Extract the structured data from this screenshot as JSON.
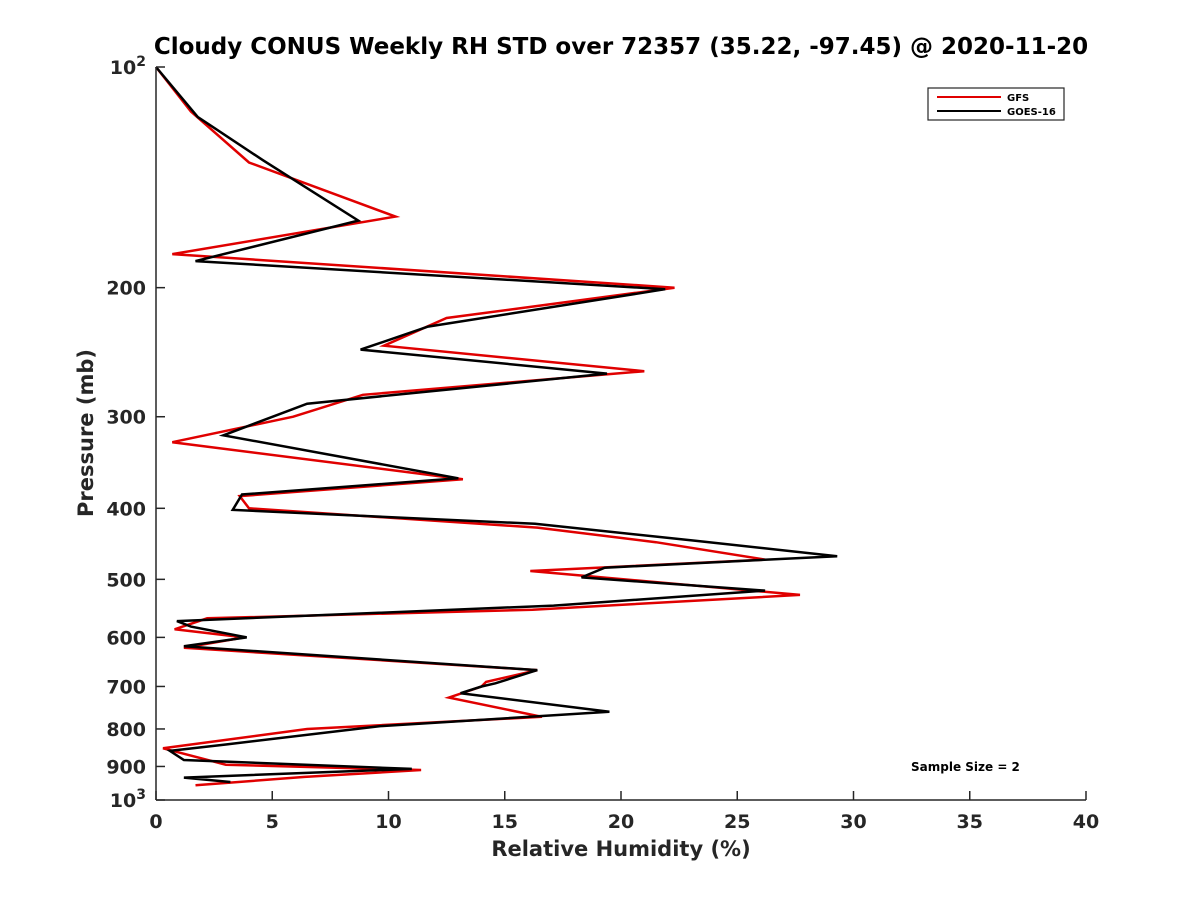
{
  "chart_data": {
    "type": "line",
    "title": "Cloudy CONUS Weekly RH STD over 72357 (35.22, -97.45) @ 2020-11-20",
    "xlabel": "Relative Humidity (%)",
    "ylabel": "Pressure (mb)",
    "xlim": [
      0,
      40
    ],
    "ylim": [
      100,
      1000
    ],
    "y_scale": "log",
    "y_reversed": true,
    "grid": false,
    "legend_position": "top-right",
    "annotation": "Sample Size = 2",
    "x_ticks": [
      "0",
      "5",
      "10",
      "15",
      "20",
      "25",
      "30",
      "35",
      "40"
    ],
    "y_ticks": [
      {
        "value": 100,
        "base": "10",
        "exp": "2"
      },
      {
        "value": 200,
        "label": "200"
      },
      {
        "value": 300,
        "label": "300"
      },
      {
        "value": 400,
        "label": "400"
      },
      {
        "value": 500,
        "label": "500"
      },
      {
        "value": 600,
        "label": "600"
      },
      {
        "value": 700,
        "label": "700"
      },
      {
        "value": 800,
        "label": "800"
      },
      {
        "value": 900,
        "label": "900"
      },
      {
        "value": 1000,
        "base": "10",
        "exp": "3"
      }
    ],
    "series": [
      {
        "name": "GFS",
        "color": "#e00000",
        "points": [
          [
            0.0,
            100
          ],
          [
            1.5,
            115
          ],
          [
            4.0,
            135
          ],
          [
            10.3,
            160
          ],
          [
            0.7,
            180
          ],
          [
            22.3,
            200
          ],
          [
            12.5,
            220
          ],
          [
            9.8,
            240
          ],
          [
            21.0,
            260
          ],
          [
            8.9,
            280
          ],
          [
            5.9,
            300
          ],
          [
            0.7,
            325
          ],
          [
            13.2,
            365
          ],
          [
            3.6,
            385
          ],
          [
            4.0,
            400
          ],
          [
            16.4,
            425
          ],
          [
            21.5,
            445
          ],
          [
            26.2,
            470
          ],
          [
            16.1,
            487
          ],
          [
            27.7,
            525
          ],
          [
            16.2,
            550
          ],
          [
            2.2,
            565
          ],
          [
            0.8,
            585
          ],
          [
            3.8,
            600
          ],
          [
            1.2,
            620
          ],
          [
            16.4,
            665
          ],
          [
            14.2,
            690
          ],
          [
            14.0,
            700
          ],
          [
            12.6,
            725
          ],
          [
            16.6,
            770
          ],
          [
            6.5,
            800
          ],
          [
            0.3,
            850
          ],
          [
            3.0,
            895
          ],
          [
            11.4,
            910
          ],
          [
            6.4,
            930
          ],
          [
            1.7,
            955
          ]
        ]
      },
      {
        "name": "GOES-16",
        "color": "#000000",
        "points": [
          [
            0.0,
            100
          ],
          [
            1.8,
            117
          ],
          [
            4.6,
            134
          ],
          [
            8.7,
            162
          ],
          [
            1.7,
            184
          ],
          [
            21.9,
            201
          ],
          [
            11.7,
            226
          ],
          [
            8.8,
            243
          ],
          [
            19.4,
            262
          ],
          [
            6.5,
            288
          ],
          [
            2.9,
            318
          ],
          [
            13.0,
            364
          ],
          [
            3.7,
            383
          ],
          [
            3.3,
            402
          ],
          [
            16.3,
            420
          ],
          [
            23.2,
            443
          ],
          [
            29.3,
            465
          ],
          [
            19.3,
            482
          ],
          [
            18.3,
            497
          ],
          [
            26.2,
            518
          ],
          [
            17.1,
            543
          ],
          [
            0.9,
            570
          ],
          [
            1.5,
            580
          ],
          [
            3.9,
            600
          ],
          [
            1.2,
            617
          ],
          [
            16.4,
            665
          ],
          [
            14.6,
            693
          ],
          [
            14.0,
            700
          ],
          [
            13.1,
            715
          ],
          [
            19.5,
            758
          ],
          [
            9.6,
            793
          ],
          [
            3.0,
            840
          ],
          [
            0.6,
            857
          ],
          [
            1.2,
            882
          ],
          [
            11.0,
            907
          ],
          [
            1.2,
            932
          ],
          [
            3.2,
            945
          ]
        ]
      }
    ]
  }
}
